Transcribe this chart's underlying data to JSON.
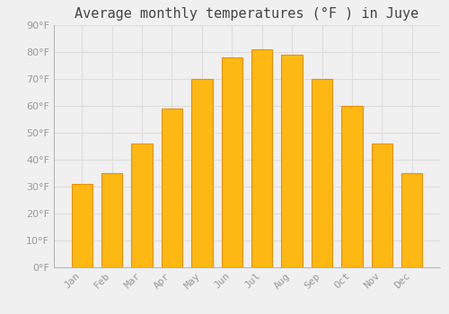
{
  "title": "Average monthly temperatures (°F ) in Juye",
  "months": [
    "Jan",
    "Feb",
    "Mar",
    "Apr",
    "May",
    "Jun",
    "Jul",
    "Aug",
    "Sep",
    "Oct",
    "Nov",
    "Dec"
  ],
  "values": [
    31,
    35,
    46,
    59,
    70,
    78,
    81,
    79,
    70,
    60,
    46,
    35
  ],
  "bar_color": "#FDB813",
  "bar_edge_color": "#E89000",
  "background_color": "#F0F0F0",
  "grid_color": "#DDDDDD",
  "ylim": [
    0,
    90
  ],
  "yticks": [
    0,
    10,
    20,
    30,
    40,
    50,
    60,
    70,
    80,
    90
  ],
  "title_fontsize": 11,
  "tick_fontsize": 8,
  "tick_color": "#999999",
  "font_family": "monospace"
}
